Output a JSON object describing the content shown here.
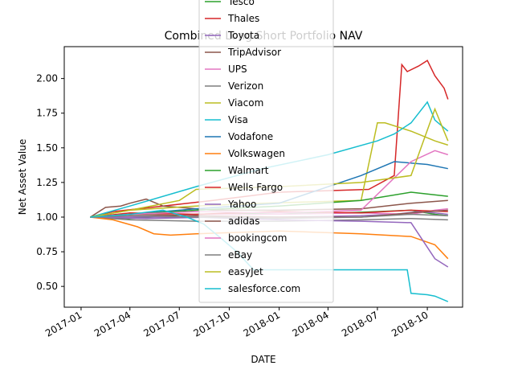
{
  "chart_data": {
    "type": "line",
    "title": "Combined Long Short Portfolio NAV",
    "xlabel": "DATE",
    "ylabel": "Net Asset Value",
    "xlim": [
      "2016-12-01",
      "2018-12-05"
    ],
    "ylim": [
      0.35,
      2.23
    ],
    "x_ticks": [
      "2017-01",
      "2017-04",
      "2017-07",
      "2017-10",
      "2018-01",
      "2018-04",
      "2018-07",
      "2018-10"
    ],
    "y_ticks": [
      0.5,
      0.75,
      1.0,
      1.25,
      1.5,
      1.75,
      2.0
    ],
    "legend_position": "top-center",
    "grid": false,
    "series": [
      {
        "name": "Tesco",
        "color": "#2ca02c",
        "x": [
          "2017-01-18",
          "2017-04-01",
          "2017-08-01",
          "2018-01-01",
          "2018-05-01",
          "2018-07-01",
          "2018-09-01",
          "2018-10-15",
          "2018-11-08"
        ],
        "values": [
          1.0,
          0.99,
          1.02,
          1.03,
          1.03,
          1.04,
          1.05,
          1.02,
          1.01
        ]
      },
      {
        "name": "Thales",
        "color": "#d62728",
        "x": [
          "2017-01-18",
          "2017-03-01",
          "2017-06-01",
          "2017-09-01",
          "2018-01-01",
          "2018-06-15",
          "2018-08-01",
          "2018-08-15",
          "2018-08-25",
          "2018-09-15",
          "2018-10-01",
          "2018-10-15",
          "2018-11-01",
          "2018-11-08"
        ],
        "values": [
          1.0,
          1.04,
          1.08,
          1.12,
          1.18,
          1.2,
          1.3,
          2.1,
          2.05,
          2.09,
          2.13,
          2.02,
          1.93,
          1.85
        ]
      },
      {
        "name": "Toyota",
        "color": "#9467bd",
        "x": [
          "2017-01-18",
          "2017-05-01",
          "2017-09-01",
          "2018-01-01",
          "2018-06-01",
          "2018-08-01",
          "2018-09-15",
          "2018-10-15",
          "2018-11-08"
        ],
        "values": [
          1.0,
          0.99,
          1.0,
          1.0,
          1.01,
          1.02,
          1.04,
          1.03,
          1.02
        ]
      },
      {
        "name": "TripAdvisor",
        "color": "#8c564b",
        "x": [
          "2017-01-18",
          "2017-02-15",
          "2017-03-15",
          "2017-04-01",
          "2017-05-01",
          "2017-06-01",
          "2017-09-01",
          "2018-01-01",
          "2018-06-01",
          "2018-09-01",
          "2018-11-08"
        ],
        "values": [
          1.0,
          1.07,
          1.08,
          1.1,
          1.13,
          1.08,
          1.05,
          1.05,
          1.06,
          1.1,
          1.12
        ]
      },
      {
        "name": "UPS",
        "color": "#e377c2",
        "x": [
          "2017-01-18",
          "2017-04-01",
          "2017-08-01",
          "2018-01-01",
          "2018-06-01",
          "2018-09-01",
          "2018-10-15",
          "2018-11-08"
        ],
        "values": [
          1.0,
          1.0,
          1.02,
          1.02,
          1.03,
          1.02,
          1.05,
          1.06
        ]
      },
      {
        "name": "Verizon",
        "color": "#7f7f7f",
        "x": [
          "2017-01-18",
          "2017-04-01",
          "2017-08-01",
          "2018-01-01",
          "2018-06-01",
          "2018-09-01",
          "2018-11-08"
        ],
        "values": [
          1.0,
          0.98,
          0.97,
          0.97,
          0.98,
          0.99,
          0.98
        ]
      },
      {
        "name": "Viacom",
        "color": "#bcbd22",
        "x": [
          "2017-01-18",
          "2017-04-01",
          "2017-08-01",
          "2017-12-01",
          "2018-06-01",
          "2018-07-01",
          "2018-07-15",
          "2018-09-01",
          "2018-10-15",
          "2018-11-08"
        ],
        "values": [
          1.0,
          1.05,
          1.08,
          1.1,
          1.12,
          1.68,
          1.68,
          1.62,
          1.55,
          1.52
        ]
      },
      {
        "name": "Visa",
        "color": "#17becf",
        "x": [
          "2017-01-18",
          "2017-04-01",
          "2017-08-01",
          "2017-12-01",
          "2018-04-01",
          "2018-07-01",
          "2018-08-01",
          "2018-09-01",
          "2018-10-01",
          "2018-10-15",
          "2018-11-08"
        ],
        "values": [
          1.0,
          1.08,
          1.22,
          1.35,
          1.45,
          1.55,
          1.6,
          1.68,
          1.83,
          1.7,
          1.62
        ]
      },
      {
        "name": "Vodafone",
        "color": "#1f77b4",
        "x": [
          "2017-01-18",
          "2017-04-01",
          "2017-08-01",
          "2018-01-01",
          "2018-06-01",
          "2018-08-01",
          "2018-10-01",
          "2018-11-08"
        ],
        "values": [
          1.0,
          1.02,
          1.06,
          1.1,
          1.3,
          1.4,
          1.38,
          1.35
        ]
      },
      {
        "name": "Volkswagen",
        "color": "#ff7f0e",
        "x": [
          "2017-01-18",
          "2017-03-01",
          "2017-04-15",
          "2017-05-15",
          "2017-06-15",
          "2017-08-01",
          "2018-01-01",
          "2018-06-01",
          "2018-09-01",
          "2018-10-15",
          "2018-11-08"
        ],
        "values": [
          1.0,
          0.98,
          0.93,
          0.88,
          0.87,
          0.88,
          0.9,
          0.88,
          0.86,
          0.8,
          0.7
        ]
      },
      {
        "name": "Walmart",
        "color": "#2ca02c",
        "x": [
          "2017-01-18",
          "2017-04-01",
          "2017-08-01",
          "2018-01-01",
          "2018-06-01",
          "2018-09-01",
          "2018-11-08"
        ],
        "values": [
          1.0,
          1.02,
          1.05,
          1.08,
          1.12,
          1.18,
          1.15
        ]
      },
      {
        "name": "Wells Fargo",
        "color": "#d62728",
        "x": [
          "2017-01-18",
          "2017-04-01",
          "2017-08-01",
          "2018-01-01",
          "2018-06-01",
          "2018-09-01",
          "2018-11-08"
        ],
        "values": [
          1.0,
          1.03,
          1.02,
          1.04,
          1.03,
          1.05,
          1.04
        ]
      },
      {
        "name": "Yahoo",
        "color": "#9467bd",
        "x": [
          "2017-01-18",
          "2017-04-01",
          "2017-08-01",
          "2018-01-01",
          "2018-06-01",
          "2018-09-01",
          "2018-10-15",
          "2018-11-08"
        ],
        "values": [
          1.0,
          1.0,
          1.0,
          0.98,
          0.97,
          0.96,
          0.7,
          0.64
        ]
      },
      {
        "name": "adidas",
        "color": "#8c564b",
        "x": [
          "2017-01-18",
          "2017-04-01",
          "2017-08-01",
          "2018-01-01",
          "2018-06-01",
          "2018-09-01",
          "2018-11-08"
        ],
        "values": [
          1.0,
          1.02,
          1.01,
          1.0,
          1.0,
          1.03,
          1.05
        ]
      },
      {
        "name": "bookingcom",
        "color": "#e377c2",
        "x": [
          "2017-01-18",
          "2017-04-01",
          "2017-08-01",
          "2018-01-01",
          "2018-06-01",
          "2018-09-01",
          "2018-10-15",
          "2018-11-08"
        ],
        "values": [
          1.0,
          1.02,
          1.04,
          1.03,
          1.05,
          1.4,
          1.48,
          1.45
        ]
      },
      {
        "name": "eBay",
        "color": "#7f7f7f",
        "x": [
          "2017-01-18",
          "2017-04-01",
          "2017-08-01",
          "2018-01-01",
          "2018-06-01",
          "2018-09-01",
          "2018-11-08"
        ],
        "values": [
          1.0,
          1.01,
          1.0,
          0.99,
          1.0,
          1.02,
          1.01
        ]
      },
      {
        "name": "easyJet",
        "color": "#bcbd22",
        "x": [
          "2017-01-18",
          "2017-04-01",
          "2017-07-01",
          "2017-08-01",
          "2018-01-01",
          "2018-06-01",
          "2018-09-01",
          "2018-10-15",
          "2018-11-08"
        ],
        "values": [
          1.0,
          1.05,
          1.12,
          1.2,
          1.22,
          1.25,
          1.3,
          1.78,
          1.55
        ]
      },
      {
        "name": "salesforce.com",
        "color": "#17becf",
        "x": [
          "2017-01-18",
          "2017-04-01",
          "2017-06-01",
          "2017-07-15",
          "2017-08-15",
          "2017-09-15",
          "2017-10-15",
          "2017-11-15",
          "2018-02-01",
          "2018-06-01",
          "2018-08-25",
          "2018-09-01",
          "2018-10-01",
          "2018-10-15",
          "2018-11-08"
        ],
        "values": [
          1.0,
          1.02,
          1.05,
          1.0,
          0.95,
          0.85,
          0.75,
          0.62,
          0.62,
          0.62,
          0.62,
          0.45,
          0.44,
          0.43,
          0.39
        ]
      }
    ]
  }
}
